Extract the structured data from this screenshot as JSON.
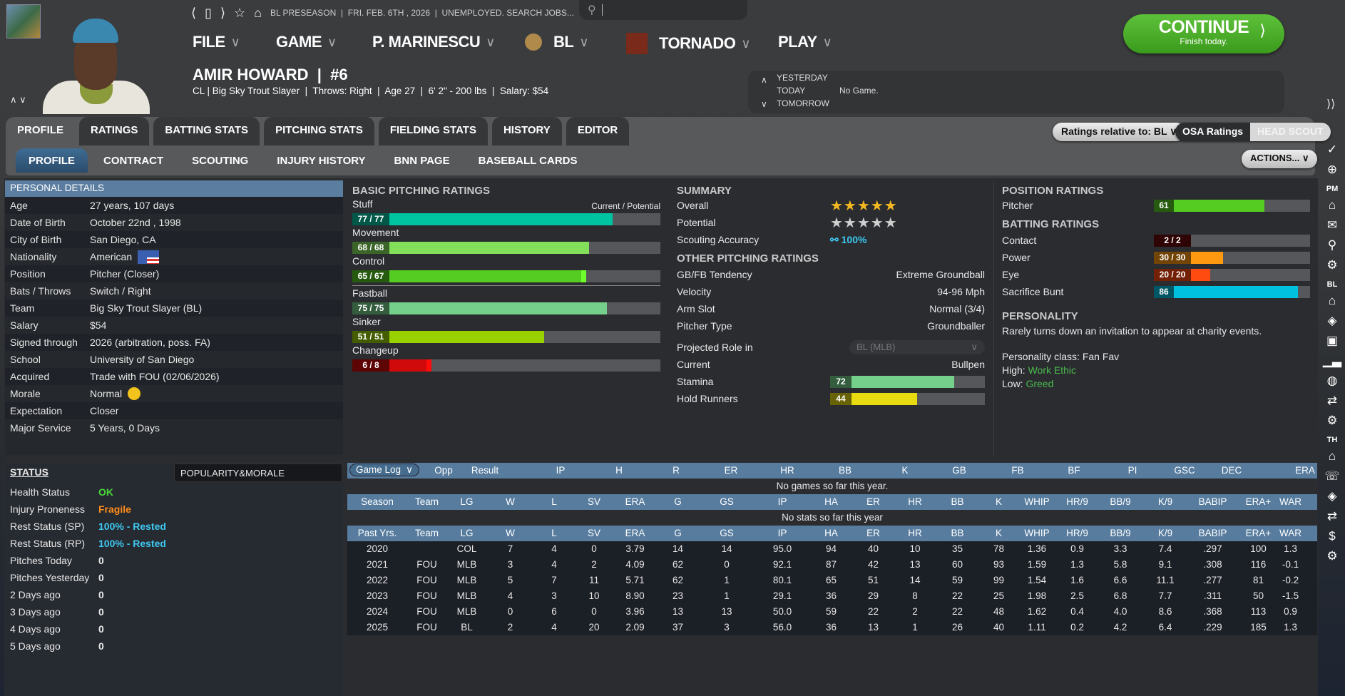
{
  "topbar": {
    "status": "BL PRESEASON  |  FRI. FEB. 6TH , 2026  |  UNEMPLOYED. SEARCH JOBS...",
    "search_placeholder": ""
  },
  "menu": [
    {
      "label": "FILE"
    },
    {
      "label": "GAME"
    },
    {
      "label": "P. MARINESCU"
    },
    {
      "label": "BL"
    },
    {
      "label": "TORNADO"
    },
    {
      "label": "PLAY"
    }
  ],
  "continue": {
    "label": "CONTINUE",
    "sub": "Finish today."
  },
  "player": {
    "name": "AMIR HOWARD  |  #6",
    "subline": "CL | Big Sky Trout Slayer  |  Throws: Right  |  Age 27  |  6' 2\" - 200 lbs  |  Salary: $54"
  },
  "schedule": {
    "yesterday": "YESTERDAY",
    "today": "TODAY",
    "today_value": "No Game.",
    "tomorrow": "TOMORROW"
  },
  "tabs": [
    "PROFILE",
    "RATINGS",
    "BATTING STATS",
    "PITCHING STATS",
    "FIELDING STATS",
    "HISTORY",
    "EDITOR"
  ],
  "subtabs": [
    "PROFILE",
    "CONTRACT",
    "SCOUTING",
    "INJURY HISTORY",
    "BNN PAGE",
    "BASEBALL CARDS"
  ],
  "controls": {
    "relative": "Ratings relative to: BL",
    "osa": "OSA Ratings",
    "head_scout": "HEAD SCOUT",
    "actions": "ACTIONS..."
  },
  "sidebar_labels": {
    "pm": "PM",
    "bl": "BL",
    "th": "TH"
  },
  "personal": {
    "title": "PERSONAL DETAILS",
    "rows": [
      [
        "Age",
        "27 years, 107 days"
      ],
      [
        "Date of Birth",
        "October 22nd , 1998"
      ],
      [
        "City of Birth",
        "San Diego, CA"
      ],
      [
        "Nationality",
        "American"
      ],
      [
        "Position",
        "Pitcher (Closer)"
      ],
      [
        "Bats / Throws",
        "Switch / Right"
      ],
      [
        "Team",
        "Big Sky Trout Slayer (BL)"
      ],
      [
        "Salary",
        "$54"
      ],
      [
        "Signed through",
        "2026 (arbitration, poss. FA)"
      ],
      [
        "School",
        "University of San Diego"
      ],
      [
        "Acquired",
        "Trade with FOU (02/06/2026)"
      ],
      [
        "Morale",
        "Normal"
      ],
      [
        "Expectation",
        "Closer"
      ],
      [
        "Major Service",
        "5 Years, 0 Days"
      ]
    ]
  },
  "status": {
    "title": "STATUS",
    "rows": [
      {
        "k": "Health Status",
        "v": "OK",
        "color": "#4cd93a"
      },
      {
        "k": "Injury Proneness",
        "v": "Fragile",
        "color": "#ff8c1a"
      },
      {
        "k": "Rest Status (SP)",
        "v": "100% - Rested",
        "color": "#3ec8f0"
      },
      {
        "k": "Rest Status (RP)",
        "v": "100% - Rested",
        "color": "#3ec8f0"
      },
      {
        "k": "Pitches Today",
        "v": "0"
      },
      {
        "k": "Pitches Yesterday",
        "v": "0"
      },
      {
        "k": "2 Days ago",
        "v": "0"
      },
      {
        "k": "3 Days ago",
        "v": "0"
      },
      {
        "k": "4 Days ago",
        "v": "0"
      },
      {
        "k": "5 Days ago",
        "v": "0"
      }
    ]
  },
  "popularity": {
    "title": "POPULARITY&MORALE"
  },
  "basic_pitching": {
    "title": "BASIC PITCHING RATINGS",
    "legend": "Current / Potential",
    "ratings": [
      {
        "name": "Stuff",
        "current": 77,
        "potential": 77,
        "label": "77 / 77",
        "color": "#00c4a0"
      },
      {
        "name": "Movement",
        "current": 68,
        "potential": 68,
        "label": "68 / 68",
        "color": "#82e05a"
      },
      {
        "name": "Control",
        "current": 65,
        "potential": 67,
        "label": "65 / 67",
        "color": "#55cc22"
      },
      {
        "name": "Fastball",
        "current": 75,
        "potential": 75,
        "label": "75 / 75",
        "color": "#74d08a"
      },
      {
        "name": "Sinker",
        "current": 51,
        "potential": 51,
        "label": "51 / 51",
        "color": "#99d000"
      },
      {
        "name": "Changeup",
        "current": 6,
        "potential": 8,
        "label": "6 / 8",
        "color": "#d00a0a"
      }
    ]
  },
  "summary": {
    "title": "SUMMARY",
    "overall_label": "Overall",
    "overall_stars": 5,
    "potential_label": "Potential",
    "potential_stars": 5,
    "accuracy_label": "Scouting Accuracy",
    "accuracy": "100%"
  },
  "other_pitching": {
    "title": "OTHER PITCHING RATINGS",
    "rows": [
      [
        "GB/FB Tendency",
        "Extreme Groundball"
      ],
      [
        "Velocity",
        "94-96 Mph"
      ],
      [
        "Arm Slot",
        "Normal (3/4)"
      ],
      [
        "Pitcher Type",
        "Groundballer"
      ]
    ],
    "projected_label": "Projected Role in",
    "projected_select": "BL (MLB)",
    "current_label": "Current",
    "current_value": "Bullpen",
    "stamina": {
      "label": "Stamina",
      "value": 72,
      "text": "72",
      "color": "#74d08a"
    },
    "hold": {
      "label": "Hold Runners",
      "value": 44,
      "text": "44",
      "color": "#e8dc10"
    }
  },
  "position_ratings": {
    "title": "POSITION RATINGS",
    "rows": [
      {
        "name": "Pitcher",
        "value": 61,
        "text": "61",
        "color": "#55cc22"
      }
    ]
  },
  "batting_ratings": {
    "title": "BATTING RATINGS",
    "rows": [
      {
        "name": "Contact",
        "value": 2,
        "text": "2 / 2",
        "color": "#6a0a0a"
      },
      {
        "name": "Power",
        "value": 30,
        "text": "30 / 30",
        "color": "#ff9a10"
      },
      {
        "name": "Eye",
        "value": 20,
        "text": "20 / 20",
        "color": "#ff4a10"
      },
      {
        "name": "Sacrifice Bunt",
        "value": 86,
        "text": "86",
        "color": "#00c0e0"
      }
    ]
  },
  "personality": {
    "title": "PERSONALITY",
    "text": "Rarely turns down an invitation to appear at charity events.",
    "class": "Personality class: Fan Fav",
    "high_label": "High:",
    "high": "Work Ethic",
    "low_label": "Low:",
    "low": "Greed"
  },
  "gamelog": {
    "select": "Game Log",
    "headers": [
      "Opp",
      "Result",
      "IP",
      "H",
      "R",
      "ER",
      "HR",
      "BB",
      "K",
      "GB",
      "FB",
      "BF",
      "PI",
      "GSC",
      "DEC",
      "ERA"
    ],
    "empty": "No games so far this year."
  },
  "season": {
    "headers": [
      "Season",
      "Team",
      "LG",
      "W",
      "L",
      "SV",
      "ERA",
      "G",
      "GS",
      "IP",
      "HA",
      "ER",
      "HR",
      "BB",
      "K",
      "WHIP",
      "HR/9",
      "BB/9",
      "K/9",
      "BABIP",
      "ERA+",
      "WAR"
    ],
    "empty": "No stats so far this year"
  },
  "past": {
    "headers": [
      "Past Yrs.",
      "Team",
      "LG",
      "W",
      "L",
      "SV",
      "ERA",
      "G",
      "GS",
      "IP",
      "HA",
      "ER",
      "HR",
      "BB",
      "K",
      "WHIP",
      "HR/9",
      "BB/9",
      "K/9",
      "BABIP",
      "ERA+",
      "WAR"
    ],
    "rows": [
      [
        "2020",
        "",
        "COL",
        "7",
        "4",
        "0",
        "3.79",
        "14",
        "14",
        "95.0",
        "94",
        "40",
        "10",
        "35",
        "78",
        "1.36",
        "0.9",
        "3.3",
        "7.4",
        ".297",
        "100",
        "1.3"
      ],
      [
        "2021",
        "FOU",
        "MLB",
        "3",
        "4",
        "2",
        "4.09",
        "62",
        "0",
        "92.1",
        "87",
        "42",
        "13",
        "60",
        "93",
        "1.59",
        "1.3",
        "5.8",
        "9.1",
        ".308",
        "116",
        "-0.1"
      ],
      [
        "2022",
        "FOU",
        "MLB",
        "5",
        "7",
        "11",
        "5.71",
        "62",
        "1",
        "80.1",
        "65",
        "51",
        "14",
        "59",
        "99",
        "1.54",
        "1.6",
        "6.6",
        "11.1",
        ".277",
        "81",
        "-0.2"
      ],
      [
        "2023",
        "FOU",
        "MLB",
        "4",
        "3",
        "10",
        "8.90",
        "23",
        "1",
        "29.1",
        "36",
        "29",
        "8",
        "22",
        "25",
        "1.98",
        "2.5",
        "6.8",
        "7.7",
        ".311",
        "50",
        "-1.5"
      ],
      [
        "2024",
        "FOU",
        "MLB",
        "0",
        "6",
        "0",
        "3.96",
        "13",
        "13",
        "50.0",
        "59",
        "22",
        "2",
        "22",
        "48",
        "1.62",
        "0.4",
        "4.0",
        "8.6",
        ".368",
        "113",
        "0.9"
      ],
      [
        "2025",
        "FOU",
        "BL",
        "2",
        "4",
        "20",
        "2.09",
        "37",
        "3",
        "56.0",
        "36",
        "13",
        "1",
        "26",
        "40",
        "1.11",
        "0.2",
        "4.2",
        "6.4",
        ".229",
        "185",
        "1.3"
      ]
    ]
  }
}
